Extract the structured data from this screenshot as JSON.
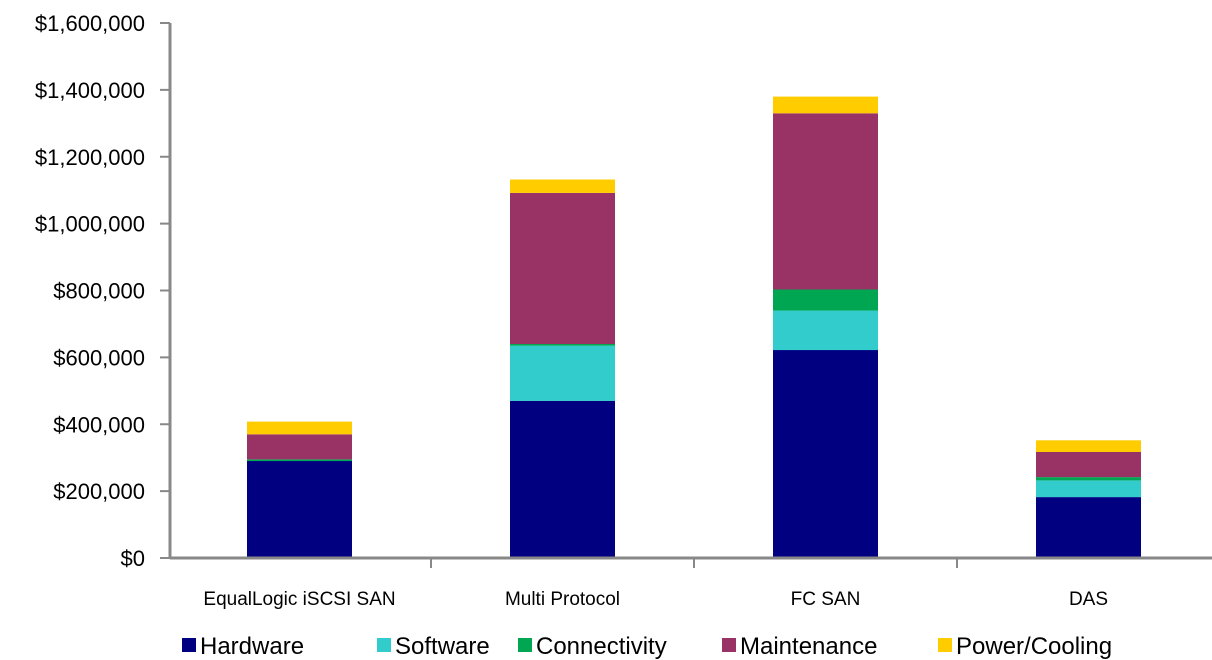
{
  "chart_data": {
    "type": "bar",
    "stacked": true,
    "categories": [
      "EqualLogic iSCSI SAN",
      "Multi Protocol",
      "FC SAN",
      "DAS"
    ],
    "series": [
      {
        "name": "Hardware",
        "color": "#000080",
        "values": [
          290000,
          470000,
          622000,
          182000
        ]
      },
      {
        "name": "Software",
        "color": "#33CCCC",
        "values": [
          0,
          165000,
          118000,
          50000
        ]
      },
      {
        "name": "Connectivity",
        "color": "#00A651",
        "values": [
          5000,
          5000,
          63000,
          10000
        ]
      },
      {
        "name": "Maintenance",
        "color": "#993366",
        "values": [
          75000,
          452000,
          527000,
          75000
        ]
      },
      {
        "name": "Power/Cooling",
        "color": "#FFCC00",
        "values": [
          38000,
          40000,
          50000,
          35000
        ]
      }
    ],
    "y_ticks": [
      "$0",
      "$200,000",
      "$400,000",
      "$600,000",
      "$800,000",
      "$1,000,000",
      "$1,200,000",
      "$1,400,000",
      "$1,600,000"
    ],
    "ylim": [
      0,
      1600000
    ],
    "legend_position": "bottom",
    "grid": false
  }
}
